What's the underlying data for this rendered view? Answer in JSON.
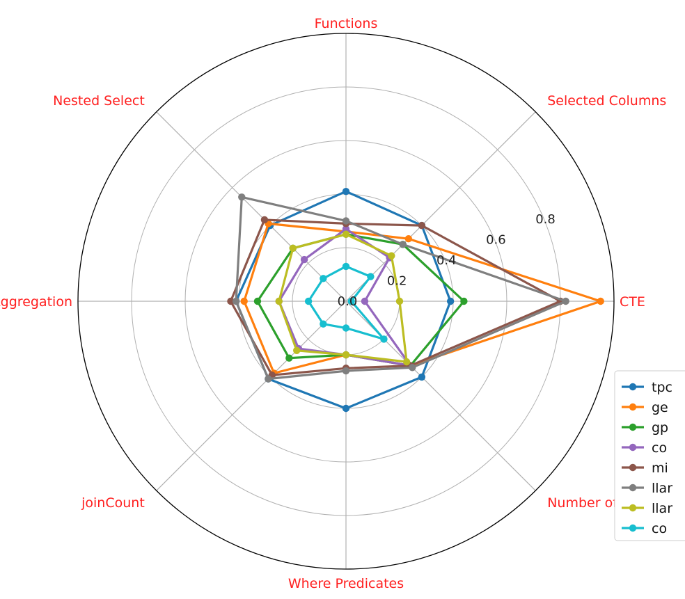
{
  "chart_data": {
    "type": "radar",
    "axes": [
      "CTE",
      "Selected Columns",
      "Functions",
      "Nested Select",
      "Aggregation",
      "joinCount",
      "Where Predicates",
      "Number of Joins"
    ],
    "rticks": [
      "0.0",
      "0.2",
      "0.4",
      "0.6",
      "0.8"
    ],
    "rlim": [
      0,
      1.0
    ],
    "grid": true,
    "legend_position": "right",
    "series": [
      {
        "name": "tpc",
        "color": "#1f77b4",
        "values": [
          0.39,
          0.4,
          0.41,
          0.4,
          0.41,
          0.41,
          0.4,
          0.4
        ]
      },
      {
        "name": "ge",
        "color": "#ff7f0e",
        "values": [
          0.95,
          0.33,
          0.26,
          0.41,
          0.38,
          0.38,
          0.2,
          0.34
        ]
      },
      {
        "name": "gp",
        "color": "#2ca02c",
        "values": [
          0.44,
          0.3,
          0.25,
          0.28,
          0.33,
          0.3,
          0.2,
          0.34
        ]
      },
      {
        "name": "co",
        "color": "#9467bd",
        "values": [
          0.07,
          0.23,
          0.27,
          0.22,
          0.25,
          0.25,
          0.2,
          0.34
        ]
      },
      {
        "name": "mi",
        "color": "#8c564b",
        "values": [
          0.8,
          0.4,
          0.29,
          0.43,
          0.43,
          0.39,
          0.25,
          0.34
        ]
      },
      {
        "name": "llar",
        "color": "#7f7f7f",
        "values": [
          0.82,
          0.3,
          0.3,
          0.55,
          0.41,
          0.41,
          0.26,
          0.35
        ]
      },
      {
        "name": "llar",
        "color": "#bcbd22",
        "values": [
          0.2,
          0.24,
          0.25,
          0.28,
          0.25,
          0.26,
          0.2,
          0.32
        ]
      },
      {
        "name": "co",
        "color": "#17becf",
        "values": [
          0.02,
          0.13,
          0.13,
          0.12,
          0.14,
          0.12,
          0.1,
          0.2
        ]
      }
    ]
  }
}
